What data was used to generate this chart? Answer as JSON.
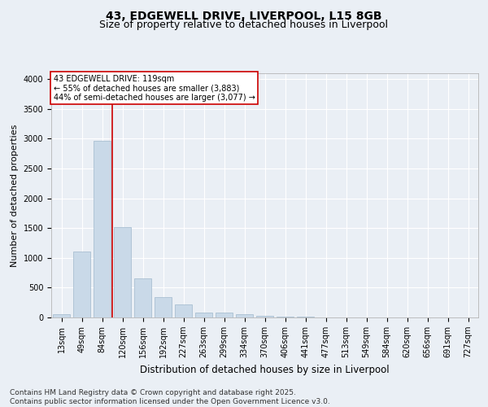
{
  "title": "43, EDGEWELL DRIVE, LIVERPOOL, L15 8GB",
  "subtitle": "Size of property relative to detached houses in Liverpool",
  "xlabel": "Distribution of detached houses by size in Liverpool",
  "ylabel": "Number of detached properties",
  "bar_labels": [
    "13sqm",
    "49sqm",
    "84sqm",
    "120sqm",
    "156sqm",
    "192sqm",
    "227sqm",
    "263sqm",
    "299sqm",
    "334sqm",
    "370sqm",
    "406sqm",
    "441sqm",
    "477sqm",
    "513sqm",
    "549sqm",
    "584sqm",
    "620sqm",
    "656sqm",
    "691sqm",
    "727sqm"
  ],
  "bar_values": [
    50,
    1110,
    2960,
    1520,
    650,
    340,
    220,
    85,
    85,
    55,
    30,
    20,
    20,
    5,
    0,
    0,
    0,
    0,
    0,
    0,
    0
  ],
  "bar_color": "#c9d9e8",
  "bar_edge_color": "#a0b8cc",
  "bar_linewidth": 0.5,
  "vline_x_index": 2.5,
  "vline_color": "#cc0000",
  "annotation_text": "43 EDGEWELL DRIVE: 119sqm\n← 55% of detached houses are smaller (3,883)\n44% of semi-detached houses are larger (3,077) →",
  "annotation_box_color": "#ffffff",
  "annotation_box_edge": "#cc0000",
  "annotation_fontsize": 7,
  "ylim": [
    0,
    4100
  ],
  "yticks": [
    0,
    500,
    1000,
    1500,
    2000,
    2500,
    3000,
    3500,
    4000
  ],
  "bg_color": "#eaeff5",
  "plot_bg_color": "#eaeff5",
  "footer": "Contains HM Land Registry data © Crown copyright and database right 2025.\nContains public sector information licensed under the Open Government Licence v3.0.",
  "title_fontsize": 10,
  "subtitle_fontsize": 9,
  "xlabel_fontsize": 8.5,
  "ylabel_fontsize": 8,
  "footer_fontsize": 6.5,
  "tick_fontsize": 7
}
